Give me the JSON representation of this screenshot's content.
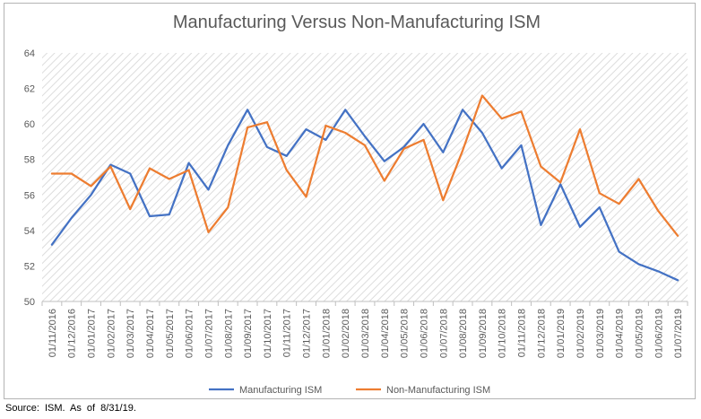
{
  "chart_data": {
    "type": "line",
    "title": "Manufacturing Versus Non-Manufacturing ISM",
    "xlabel": "",
    "ylabel": "",
    "ylim": [
      50,
      64
    ],
    "yticks": [
      50,
      52,
      54,
      56,
      58,
      60,
      62,
      64
    ],
    "grid": "diagonal hatch background",
    "legend": "bottom-center",
    "categories": [
      "01/11/2016",
      "01/12/2016",
      "01/01/2017",
      "01/02/2017",
      "01/03/2017",
      "01/04/2017",
      "01/05/2017",
      "01/06/2017",
      "01/07/2017",
      "01/08/2017",
      "01/09/2017",
      "01/10/2017",
      "01/11/2017",
      "01/12/2017",
      "01/01/2018",
      "01/02/2018",
      "01/03/2018",
      "01/04/2018",
      "01/05/2018",
      "01/06/2018",
      "01/07/2018",
      "01/08/2018",
      "01/09/2018",
      "01/10/2018",
      "01/11/2018",
      "01/12/2018",
      "01/01/2019",
      "01/02/2019",
      "01/03/2019",
      "01/04/2019",
      "01/05/2019",
      "01/06/2019",
      "01/07/2019"
    ],
    "series": [
      {
        "name": "Manufacturing ISM",
        "color": "#4472C4",
        "values": [
          53.2,
          54.7,
          56.0,
          57.7,
          57.2,
          54.8,
          54.9,
          57.8,
          56.3,
          58.8,
          60.8,
          58.7,
          58.2,
          59.7,
          59.1,
          60.8,
          59.3,
          57.9,
          58.7,
          60.0,
          58.4,
          60.8,
          59.5,
          57.5,
          58.8,
          54.3,
          56.6,
          54.2,
          55.3,
          52.8,
          52.1,
          51.7,
          51.2
        ]
      },
      {
        "name": "Non-Manufacturing ISM",
        "color": "#ED7D31",
        "values": [
          57.2,
          57.2,
          56.5,
          57.6,
          55.2,
          57.5,
          56.9,
          57.4,
          53.9,
          55.3,
          59.8,
          60.1,
          57.4,
          55.9,
          59.9,
          59.5,
          58.8,
          56.8,
          58.6,
          59.1,
          55.7,
          58.5,
          61.6,
          60.3,
          60.7,
          57.6,
          56.7,
          59.7,
          56.1,
          55.5,
          56.9,
          55.1,
          53.7
        ]
      }
    ]
  },
  "source": "Source: ISM. As of 8/31/19."
}
